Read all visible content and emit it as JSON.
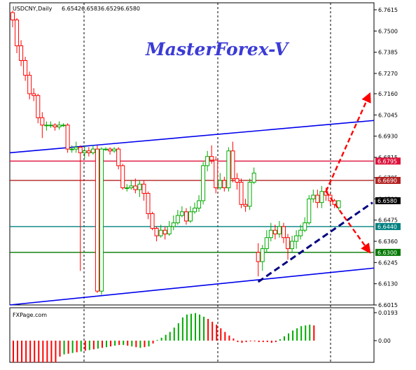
{
  "header": {
    "symbol": "USDCNY,Daily",
    "open": "6.6542",
    "high": "6.6583",
    "low": "6.6529",
    "close": "6.6580"
  },
  "brand": {
    "text": "MasterForex-V",
    "color": "#3b3bd6"
  },
  "indicator": {
    "label": "FXPage.com",
    "top_value": "0.0193",
    "zero_label": "0.00"
  },
  "colors": {
    "bull": "#00aa00",
    "bear": "#ff0000",
    "channel": "#0000ee",
    "level_crimson": "#dc143c",
    "level_darkred": "#b22222",
    "level_teal": "#008080",
    "level_green": "#007700",
    "arrow": "#ff0000",
    "trend": "#000080"
  },
  "chart_data": {
    "type": "candlestick",
    "y_ticks": [
      "6.7615",
      "6.7500",
      "6.7385",
      "6.7270",
      "6.7160",
      "6.7045",
      "6.6930",
      "6.6815",
      "6.6705",
      "6.6590",
      "6.6475",
      "6.6360",
      "6.6245",
      "6.6130",
      "6.6015"
    ],
    "ylim": [
      6.6015,
      6.7615
    ],
    "price_levels": [
      {
        "price": 6.6795,
        "label": "6.6795",
        "color": "#dc143c"
      },
      {
        "price": 6.669,
        "label": "6.6690",
        "color": "#b22222"
      },
      {
        "price": 6.658,
        "label": "6.6580",
        "color": "#000000"
      },
      {
        "price": 6.644,
        "label": "6.6440",
        "color": "#008080"
      },
      {
        "price": 6.63,
        "label": "6.6300",
        "color": "#007700"
      }
    ],
    "channel_lines": [
      {
        "from": [
          0,
          6.684
        ],
        "to": [
          86,
          6.7015
        ]
      },
      {
        "from": [
          0,
          6.6015
        ],
        "to": [
          86,
          6.6215
        ]
      }
    ],
    "trend_line": {
      "from": [
        58,
        6.614
      ],
      "to": [
        86,
        6.657
      ]
    },
    "arrows": [
      {
        "from": [
          75,
          6.663
        ],
        "to": [
          86,
          6.716
        ]
      },
      {
        "from": [
          75,
          6.663
        ],
        "to": [
          86,
          6.63
        ]
      }
    ],
    "candles": [
      [
        6.76,
        6.756,
        6.761,
        6.752
      ],
      [
        6.756,
        6.742,
        6.757,
        6.738
      ],
      [
        6.742,
        6.734,
        6.745,
        6.731
      ],
      [
        6.734,
        6.726,
        6.736,
        6.723
      ],
      [
        6.726,
        6.716,
        6.728,
        6.713
      ],
      [
        6.716,
        6.715,
        6.719,
        6.712
      ],
      [
        6.715,
        6.703,
        6.716,
        6.7
      ],
      [
        6.703,
        6.699,
        6.706,
        6.692
      ],
      [
        6.699,
        6.699,
        6.701,
        6.696
      ],
      [
        6.699,
        6.699,
        6.701,
        6.6975
      ],
      [
        6.699,
        6.698,
        6.7,
        6.696
      ],
      [
        6.698,
        6.699,
        6.701,
        6.6965
      ],
      [
        6.699,
        6.699,
        6.7,
        6.698
      ],
      [
        6.699,
        6.686,
        6.7,
        6.684
      ],
      [
        6.686,
        6.686,
        6.688,
        6.684
      ],
      [
        6.686,
        6.687,
        6.69,
        6.684
      ],
      [
        6.687,
        6.684,
        6.688,
        6.62
      ],
      [
        6.684,
        6.685,
        6.688,
        6.681
      ],
      [
        6.685,
        6.684,
        6.687,
        6.682
      ],
      [
        6.684,
        6.686,
        6.688,
        6.683
      ],
      [
        6.686,
        6.609,
        6.688,
        6.608
      ],
      [
        6.609,
        6.686,
        6.687,
        6.607
      ],
      [
        6.686,
        6.686,
        6.687,
        6.685
      ],
      [
        6.686,
        6.685,
        6.687,
        6.683
      ],
      [
        6.685,
        6.686,
        6.687,
        6.684
      ],
      [
        6.686,
        6.677,
        6.687,
        6.675
      ],
      [
        6.677,
        6.665,
        6.678,
        6.664
      ],
      [
        6.665,
        6.665,
        6.667,
        6.663
      ],
      [
        6.665,
        6.666,
        6.669,
        6.664
      ],
      [
        6.666,
        6.664,
        6.67,
        6.662
      ],
      [
        6.664,
        6.667,
        6.669,
        6.66
      ],
      [
        6.667,
        6.662,
        6.669,
        6.658
      ],
      [
        6.662,
        6.651,
        6.663,
        6.648
      ],
      [
        6.651,
        6.643,
        6.652,
        6.642
      ],
      [
        6.643,
        6.639,
        6.644,
        6.636
      ],
      [
        6.639,
        6.642,
        6.645,
        6.638
      ],
      [
        6.642,
        6.64,
        6.644,
        6.637
      ],
      [
        6.64,
        6.644,
        6.647,
        6.639
      ],
      [
        6.644,
        6.646,
        6.65,
        6.642
      ],
      [
        6.646,
        6.65,
        6.653,
        6.645
      ],
      [
        6.65,
        6.652,
        6.655,
        6.649
      ],
      [
        6.652,
        6.647,
        6.654,
        6.645
      ],
      [
        6.647,
        6.652,
        6.655,
        6.646
      ],
      [
        6.652,
        6.654,
        6.657,
        6.651
      ],
      [
        6.654,
        6.658,
        6.661,
        6.652
      ],
      [
        6.658,
        6.677,
        6.679,
        6.656
      ],
      [
        6.677,
        6.682,
        6.685,
        6.674
      ],
      [
        6.682,
        6.68,
        6.688,
        6.678
      ],
      [
        6.68,
        6.665,
        6.682,
        6.662
      ],
      [
        6.665,
        6.669,
        6.673,
        6.664
      ],
      [
        6.669,
        6.665,
        6.671,
        6.663
      ],
      [
        6.665,
        6.685,
        6.687,
        6.663
      ],
      [
        6.685,
        6.67,
        6.69,
        6.668
      ],
      [
        6.67,
        6.668,
        6.673,
        6.664
      ],
      [
        6.668,
        6.656,
        6.67,
        6.654
      ],
      [
        6.656,
        6.655,
        6.659,
        6.652
      ],
      [
        6.655,
        6.668,
        6.67,
        6.653
      ],
      [
        6.668,
        6.673,
        6.676,
        6.667
      ],
      [
        6.63,
        6.625,
        6.635,
        6.617
      ],
      [
        6.625,
        6.632,
        6.634,
        6.62
      ],
      [
        6.632,
        6.638,
        6.642,
        6.63
      ],
      [
        6.638,
        6.642,
        6.646,
        6.636
      ],
      [
        6.642,
        6.64,
        6.645,
        6.637
      ],
      [
        6.64,
        6.644,
        6.647,
        6.638
      ],
      [
        6.644,
        6.638,
        6.646,
        6.635
      ],
      [
        6.638,
        6.632,
        6.64,
        6.626
      ],
      [
        6.632,
        6.636,
        6.639,
        6.63
      ],
      [
        6.636,
        6.639,
        6.642,
        6.632
      ],
      [
        6.639,
        6.642,
        6.645,
        6.637
      ],
      [
        6.642,
        6.646,
        6.649,
        6.641
      ],
      [
        6.646,
        6.659,
        6.661,
        6.645
      ],
      [
        6.659,
        6.661,
        6.664,
        6.657
      ],
      [
        6.661,
        6.657,
        6.664,
        6.654
      ],
      [
        6.657,
        6.663,
        6.666,
        6.654
      ],
      [
        6.663,
        6.661,
        6.665,
        6.658
      ],
      [
        6.661,
        6.658,
        6.662,
        6.656
      ],
      [
        6.658,
        6.656,
        6.659,
        6.654
      ],
      [
        6.6542,
        6.658,
        6.6583,
        6.6529
      ]
    ],
    "histogram_scale": 0.0193,
    "histogram": [
      -0.015,
      -0.015,
      -0.015,
      -0.015,
      -0.015,
      -0.015,
      -0.015,
      -0.015,
      -0.015,
      -0.015,
      -0.015,
      -0.011,
      -0.0095,
      -0.009,
      -0.0085,
      -0.008,
      -0.0075,
      -0.007,
      -0.0065,
      -0.006,
      -0.0055,
      -0.005,
      -0.0045,
      -0.004,
      -0.0035,
      -0.003,
      -0.003,
      -0.0035,
      -0.004,
      -0.0045,
      -0.005,
      -0.0045,
      -0.004,
      -0.002,
      0.0005,
      0.002,
      0.004,
      0.006,
      0.009,
      0.012,
      0.016,
      0.018,
      0.0185,
      0.019,
      0.018,
      0.0165,
      0.015,
      0.013,
      0.011,
      0.0085,
      0.006,
      0.0035,
      0.0015,
      -0.001,
      -0.0015,
      -0.001,
      -0.0005,
      -0.0005,
      -0.001,
      -0.001,
      -0.001,
      -0.0015,
      -0.001,
      0.001,
      0.003,
      0.005,
      0.007,
      0.0085,
      0.01,
      0.0105,
      0.011,
      0.0105
    ]
  }
}
